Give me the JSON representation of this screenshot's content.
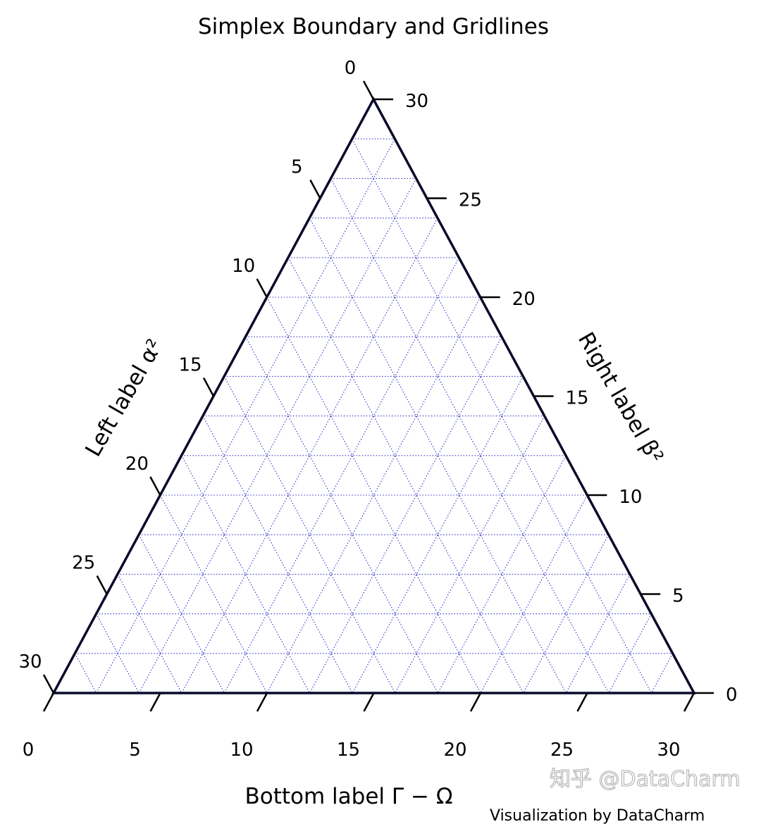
{
  "chart_data": {
    "type": "ternary",
    "title": "Simplex Boundary and Gridlines",
    "scale": 30,
    "grid": true,
    "grid_multiple": 2,
    "tick_multiple": 5,
    "ticks": [
      "0",
      "5",
      "10",
      "15",
      "20",
      "25",
      "30"
    ],
    "bottom_label": "Bottom label Γ − Ω",
    "left_label": "Left label α²",
    "right_label": "Right label β²",
    "boundary_color": "#0a0a2a",
    "grid_color": "#3333cc"
  },
  "footer": {
    "credit": "Visualization by DataCharm",
    "watermark": "知乎 @DataCharm"
  }
}
